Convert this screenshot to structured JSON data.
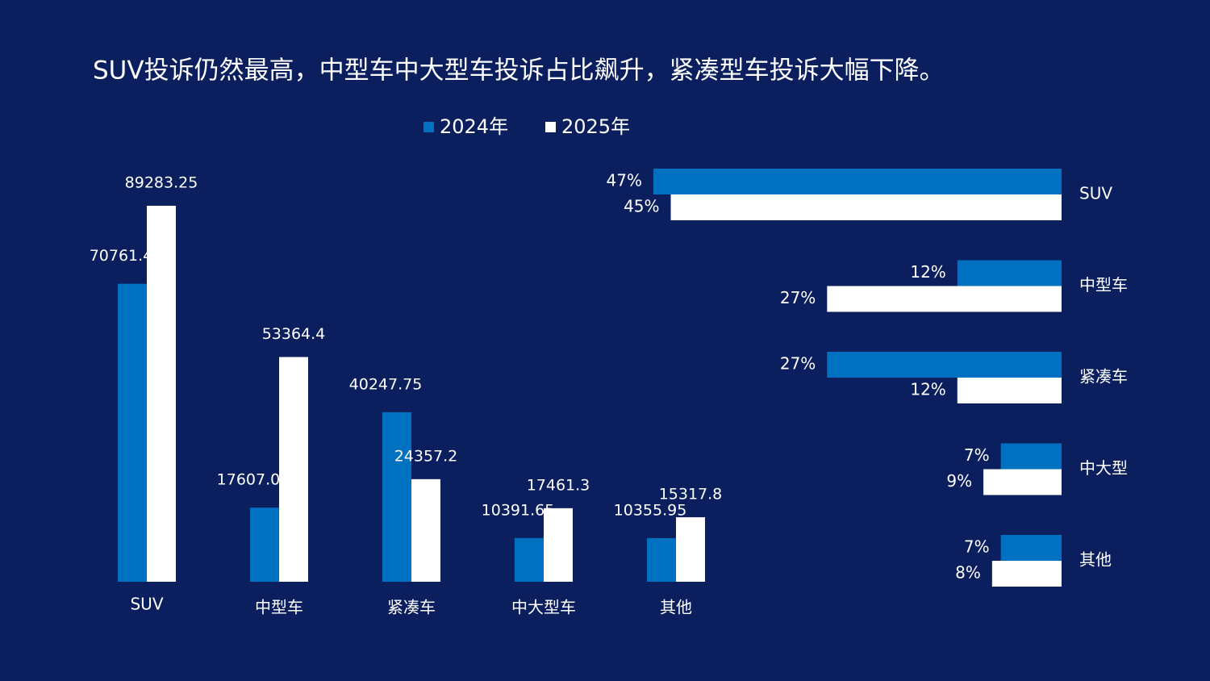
{
  "title": "SUV投诉仍然最高，中型车中大型车投诉占比飙升，紧凑型车投诉大幅下降。",
  "chart_data": [
    {
      "type": "bar",
      "categories": [
        "SUV",
        "中型车",
        "紧凑车",
        "中大型车",
        "其他"
      ],
      "series": [
        {
          "name": "2024年",
          "color": "#0070c0",
          "label_color": "#5b9bd5",
          "values": [
            70761.4,
            17607.05,
            40247.75,
            10391.65,
            10355.95
          ]
        },
        {
          "name": "2025年",
          "color": "#ffffff",
          "label_color": "#ffffff",
          "values": [
            89283.25,
            53364.4,
            24357.2,
            17461.3,
            15317.8
          ]
        }
      ]
    },
    {
      "type": "hbar",
      "categories": [
        "SUV",
        "中型车",
        "紧凑车",
        "中大型",
        "其他"
      ],
      "series": [
        {
          "color": "#0070c0",
          "values": [
            47,
            12,
            27,
            7,
            7
          ],
          "value_labels": [
            "47%",
            "12%",
            "27%",
            "7%",
            "7%"
          ]
        },
        {
          "color": "#ffffff",
          "values": [
            45,
            27,
            12,
            9,
            8
          ],
          "value_labels": [
            "45%",
            "27%",
            "12%",
            "9%",
            "8%"
          ]
        }
      ]
    }
  ]
}
